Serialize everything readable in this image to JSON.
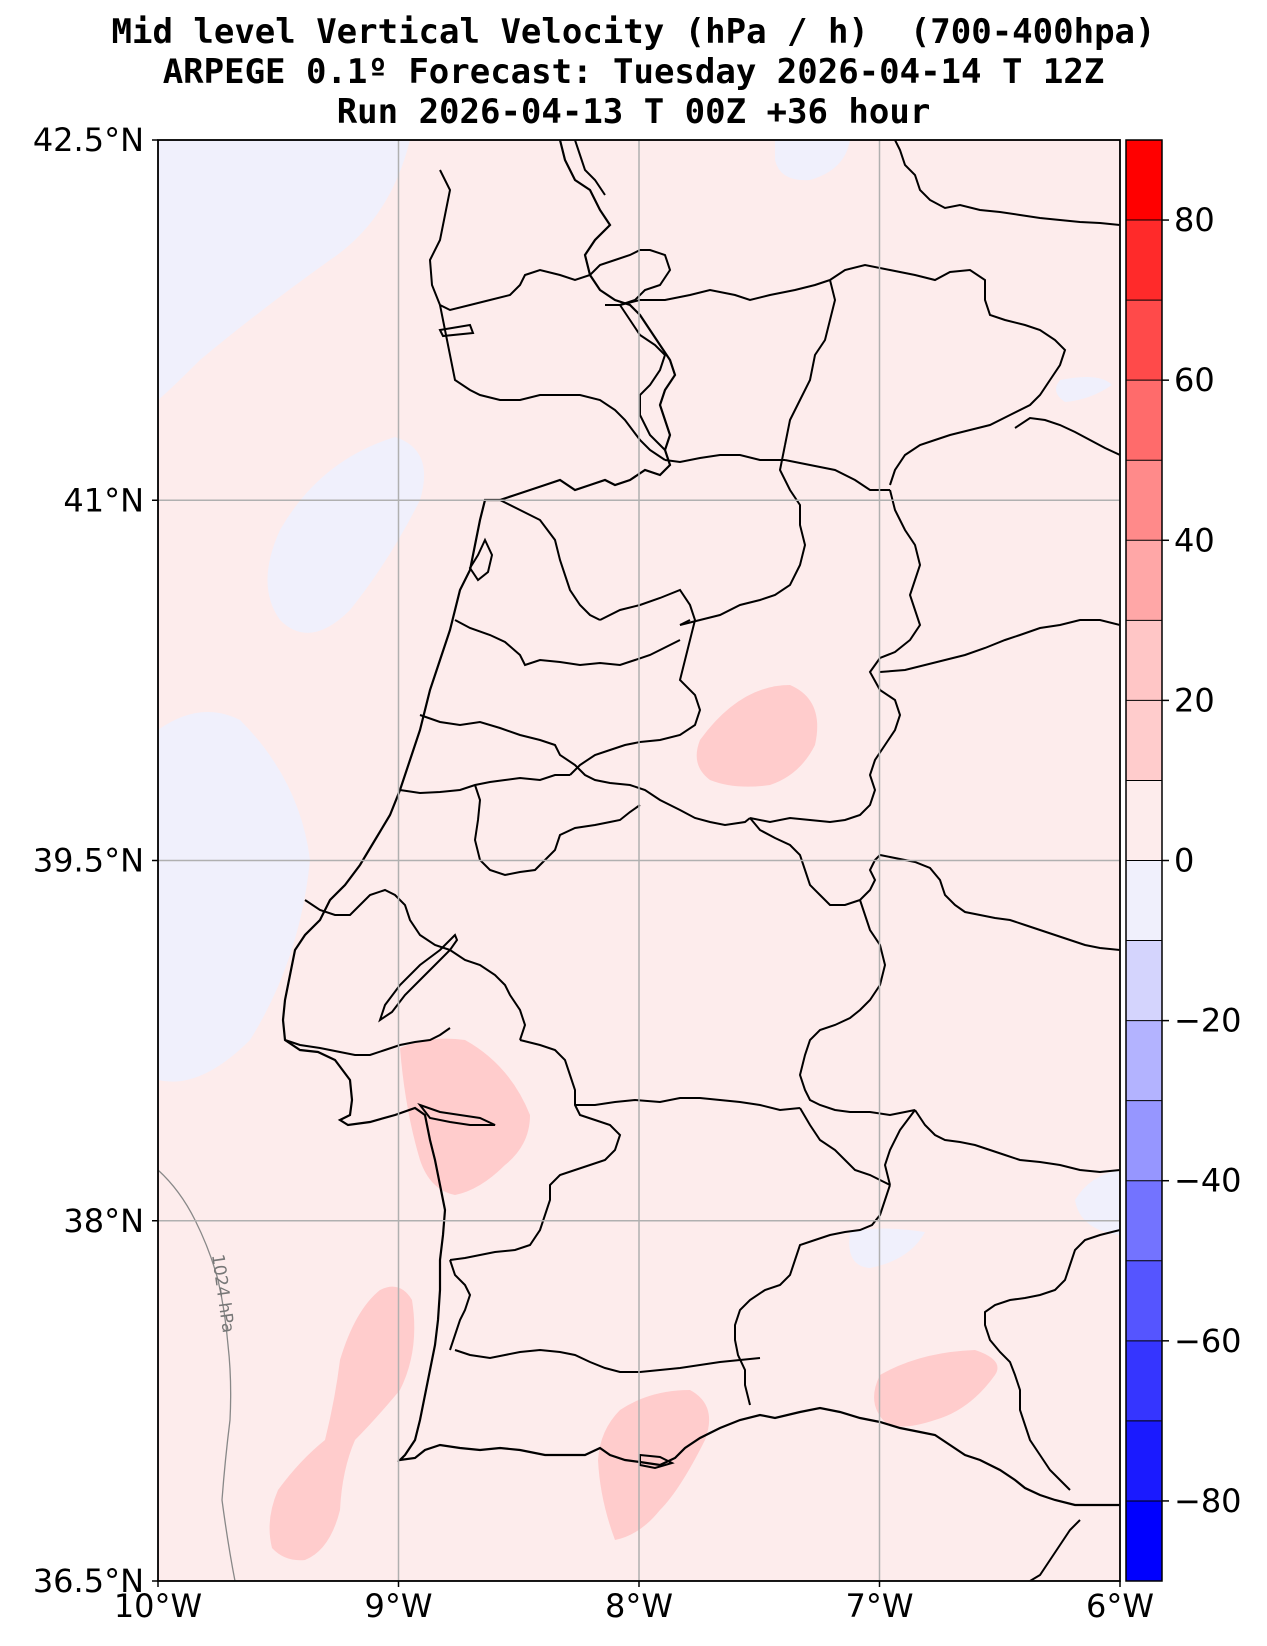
{
  "title": {
    "line1": "Mid level Vertical Velocity (hPa / h)  (700-400hpa)",
    "line2": "ARPEGE 0.1º Forecast: Tuesday 2026-04-14 T 12Z",
    "line3": "Run 2026-04-13 T 00Z +36 hour"
  },
  "map": {
    "lon_range": [
      -10,
      -6
    ],
    "lat_range": [
      36.5,
      42.5
    ],
    "x_ticks": [
      "10°W",
      "9°W",
      "8°W",
      "7°W",
      "6°W"
    ],
    "y_ticks": [
      "42.5°N",
      "41°N",
      "39.5°N",
      "38°N",
      "36.5°N"
    ],
    "grid": true,
    "isobar_label": "1024 hPa",
    "background_color": "#fdecec"
  },
  "colorbar": {
    "min": -90,
    "max": 90,
    "ticks": [
      "80",
      "60",
      "40",
      "20",
      "0",
      "−20",
      "−40",
      "−60",
      "−80"
    ],
    "levels": [
      {
        "from": 80,
        "to": 90,
        "color": "#ff0000"
      },
      {
        "from": 70,
        "to": 80,
        "color": "#ff2a2a"
      },
      {
        "from": 60,
        "to": 70,
        "color": "#ff4a4a"
      },
      {
        "from": 50,
        "to": 60,
        "color": "#ff6b6b"
      },
      {
        "from": 40,
        "to": 50,
        "color": "#ff8a8a"
      },
      {
        "from": 30,
        "to": 40,
        "color": "#ffa7a7"
      },
      {
        "from": 20,
        "to": 30,
        "color": "#ffc6c6"
      },
      {
        "from": 10,
        "to": 20,
        "color": "#ffcccc"
      },
      {
        "from": 0,
        "to": 10,
        "color": "#fdecec"
      },
      {
        "from": -10,
        "to": 0,
        "color": "#f0f0fc"
      },
      {
        "from": -20,
        "to": -10,
        "color": "#d4d4fd"
      },
      {
        "from": -30,
        "to": -20,
        "color": "#b3b3ff"
      },
      {
        "from": -40,
        "to": -30,
        "color": "#9696ff"
      },
      {
        "from": -50,
        "to": -40,
        "color": "#7373ff"
      },
      {
        "from": -60,
        "to": -50,
        "color": "#5555ff"
      },
      {
        "from": -70,
        "to": -60,
        "color": "#3535ff"
      },
      {
        "from": -80,
        "to": -70,
        "color": "#1a1aff"
      },
      {
        "from": -90,
        "to": -80,
        "color": "#0000ff"
      }
    ]
  }
}
